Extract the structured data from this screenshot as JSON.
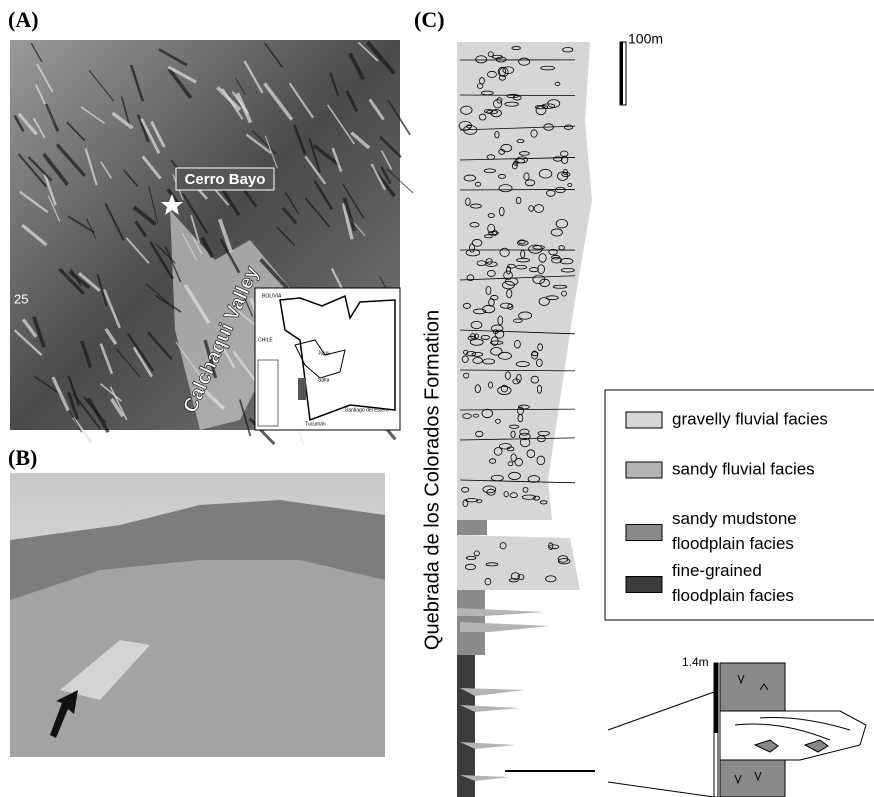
{
  "panel_a": {
    "label": "(A)",
    "site": "Cerro Bayo",
    "valley": "Calchaqui Valley",
    "latitude": "25",
    "inset": {
      "country_1": "BOLIVIA",
      "country_2": "CHILE",
      "province_1": "Jujuy",
      "province_2": "Salta",
      "province_3": "Tucumán",
      "province_4": "Santiago del Estero"
    }
  },
  "panel_b": {
    "label": "(B)"
  },
  "panel_c": {
    "label": "(C)",
    "formation": "Quebrada de los Colorados Formation",
    "scale": "100m",
    "detail_scale": "1.4m",
    "legend": [
      {
        "label": "gravelly fluvial facies",
        "color": "#d6d6d6"
      },
      {
        "label": "sandy fluvial facies",
        "color": "#b4b4b4"
      },
      {
        "label": "sandy mudstone floodplain facies",
        "color": "#8a8a8a"
      },
      {
        "label": "fine-grained floodplain facies",
        "color": "#3c3c3c"
      }
    ]
  }
}
